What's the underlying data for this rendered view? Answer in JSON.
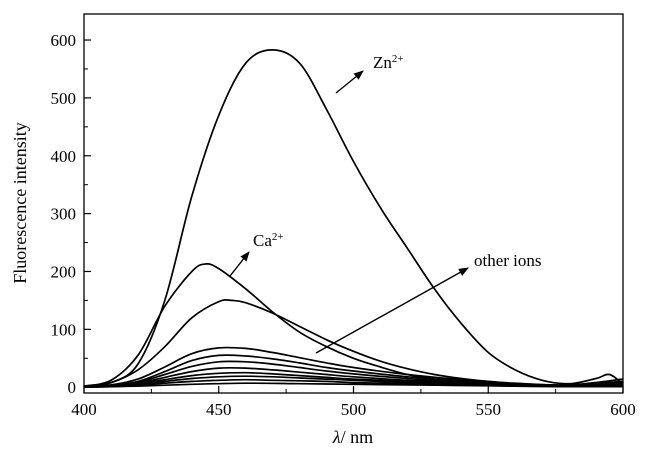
{
  "chart_data": {
    "type": "line",
    "title": "",
    "xlabel_symbol": "λ",
    "xlabel_unit": "/ nm",
    "ylabel": "Fluorescence intensity",
    "xlim": [
      400,
      600
    ],
    "ylim": [
      -10,
      645
    ],
    "x_ticks": [
      400,
      450,
      500,
      550,
      600
    ],
    "y_ticks": [
      0,
      100,
      200,
      300,
      400,
      500,
      600
    ],
    "grid": false,
    "legend": "none",
    "series": [
      {
        "name": "Zn2+",
        "x": [
          400,
          410,
          420,
          430,
          440,
          450,
          460,
          470,
          480,
          490,
          500,
          510,
          520,
          530,
          540,
          550,
          560,
          570,
          580,
          590,
          595,
          600
        ],
        "y": [
          2,
          8,
          40,
          150,
          330,
          470,
          560,
          583,
          560,
          480,
          390,
          310,
          240,
          170,
          110,
          60,
          30,
          12,
          6,
          15,
          22,
          5
        ]
      },
      {
        "name": "Ca2+",
        "x": [
          400,
          410,
          420,
          430,
          440,
          445,
          450,
          460,
          470,
          480,
          490,
          500,
          510,
          520,
          530,
          540,
          550,
          560,
          570,
          580,
          590,
          600
        ],
        "y": [
          2,
          12,
          55,
          140,
          200,
          213,
          205,
          170,
          130,
          95,
          70,
          50,
          35,
          22,
          14,
          8,
          5,
          3,
          2,
          1,
          1,
          1
        ]
      },
      {
        "name": "",
        "x": [
          400,
          410,
          420,
          430,
          440,
          450,
          455,
          460,
          470,
          480,
          490,
          500,
          510,
          520,
          530,
          540,
          550,
          560,
          570,
          580,
          590,
          600
        ],
        "y": [
          2,
          8,
          30,
          70,
          120,
          148,
          150,
          146,
          128,
          105,
          82,
          62,
          45,
          32,
          22,
          15,
          10,
          6,
          4,
          3,
          3,
          8
        ]
      },
      {
        "name": "",
        "x": [
          400,
          410,
          420,
          430,
          440,
          450,
          460,
          470,
          480,
          490,
          500,
          520,
          540,
          560,
          580,
          600
        ],
        "y": [
          1,
          4,
          14,
          35,
          58,
          68,
          67,
          60,
          51,
          42,
          34,
          22,
          13,
          7,
          4,
          14
        ]
      },
      {
        "name": "",
        "x": [
          400,
          410,
          420,
          430,
          440,
          450,
          460,
          470,
          480,
          490,
          500,
          520,
          540,
          560,
          580,
          600
        ],
        "y": [
          1,
          3,
          10,
          27,
          46,
          55,
          54,
          49,
          42,
          34,
          28,
          18,
          11,
          6,
          4,
          10
        ]
      },
      {
        "name": "",
        "x": [
          400,
          410,
          420,
          430,
          440,
          450,
          460,
          470,
          480,
          490,
          500,
          520,
          540,
          560,
          580,
          600
        ],
        "y": [
          1,
          3,
          9,
          22,
          36,
          44,
          44,
          40,
          34,
          28,
          23,
          15,
          9,
          5,
          3,
          7
        ]
      },
      {
        "name": "",
        "x": [
          400,
          410,
          420,
          430,
          440,
          450,
          460,
          470,
          480,
          490,
          500,
          520,
          540,
          560,
          580,
          600
        ],
        "y": [
          1,
          2,
          7,
          17,
          27,
          33,
          33,
          30,
          26,
          22,
          18,
          12,
          8,
          4,
          2,
          5
        ]
      },
      {
        "name": "",
        "x": [
          400,
          410,
          420,
          430,
          440,
          450,
          460,
          470,
          480,
          490,
          500,
          520,
          540,
          560,
          580,
          600
        ],
        "y": [
          1,
          2,
          6,
          13,
          20,
          24,
          25,
          23,
          20,
          17,
          14,
          10,
          6,
          3,
          2,
          4
        ]
      },
      {
        "name": "",
        "x": [
          400,
          410,
          420,
          430,
          440,
          450,
          460,
          470,
          480,
          490,
          500,
          520,
          540,
          560,
          580,
          600
        ],
        "y": [
          1,
          2,
          4,
          10,
          15,
          18,
          19,
          18,
          16,
          14,
          12,
          8,
          5,
          3,
          2,
          3
        ]
      },
      {
        "name": "",
        "x": [
          400,
          410,
          420,
          430,
          440,
          450,
          460,
          470,
          480,
          490,
          500,
          520,
          540,
          560,
          580,
          600
        ],
        "y": [
          0,
          1,
          3,
          7,
          10,
          12,
          13,
          12,
          11,
          10,
          8,
          6,
          4,
          2,
          1,
          2
        ]
      },
      {
        "name": "",
        "x": [
          400,
          420,
          440,
          460,
          480,
          500,
          520,
          540,
          560,
          580,
          600
        ],
        "y": [
          0,
          2,
          5,
          7,
          6,
          5,
          4,
          3,
          2,
          1,
          1
        ]
      }
    ],
    "annotations": [
      {
        "base": "Zn",
        "sup": "2+"
      },
      {
        "base": "Ca",
        "sup": "2+"
      },
      {
        "text": "other ions"
      }
    ]
  }
}
